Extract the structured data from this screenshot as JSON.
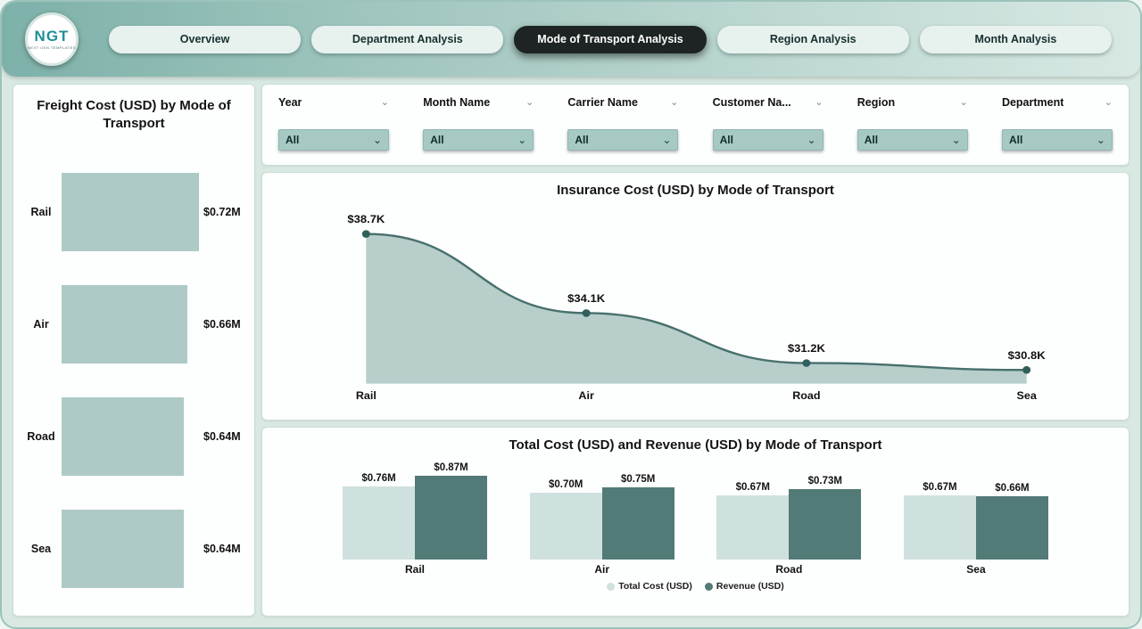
{
  "logo": {
    "text": "NGT",
    "subtext": "NEXT GEN TEMPLATES"
  },
  "nav": {
    "tabs": [
      {
        "label": "Overview",
        "active": false
      },
      {
        "label": "Department Analysis",
        "active": false
      },
      {
        "label": "Mode of Transport Analysis",
        "active": true
      },
      {
        "label": "Region Analysis",
        "active": false
      },
      {
        "label": "Month Analysis",
        "active": false
      }
    ]
  },
  "filters": {
    "items": [
      {
        "label": "Year",
        "value": "All"
      },
      {
        "label": "Month Name",
        "value": "All"
      },
      {
        "label": "Carrier Name",
        "value": "All"
      },
      {
        "label": "Customer Na...",
        "value": "All"
      },
      {
        "label": "Region",
        "value": "All"
      },
      {
        "label": "Department",
        "value": "All"
      }
    ]
  },
  "colors": {
    "accent_dark": "#527a76",
    "accent_light": "#cfe1de",
    "bar_sage": "#adcac7",
    "area_fill": "#b7cecb",
    "line": "#47706c",
    "point": "#305f5c",
    "active_tab_bg": "#1e2423",
    "tab_bg": "#e7f1ee"
  },
  "chart_data": [
    {
      "type": "bar",
      "orientation": "horizontal",
      "title": "Freight Cost (USD) by Mode of Transport",
      "categories": [
        "Rail",
        "Air",
        "Road",
        "Sea"
      ],
      "values": [
        0.72,
        0.66,
        0.64,
        0.64
      ],
      "value_labels": [
        "$0.72M",
        "$0.66M",
        "$0.64M",
        "$0.64M"
      ],
      "xlabel": "",
      "ylabel": "",
      "bar_color": "#adcac7"
    },
    {
      "type": "area",
      "title": "Insurance Cost (USD) by Mode of Transport",
      "categories": [
        "Rail",
        "Air",
        "Road",
        "Sea"
      ],
      "values": [
        38.7,
        34.1,
        31.2,
        30.8
      ],
      "value_labels": [
        "$38.7K",
        "$34.1K",
        "$31.2K",
        "$30.8K"
      ],
      "ylim": [
        30,
        40
      ],
      "area_fill": "#b7cecb",
      "line_color": "#47706c",
      "point_color": "#305f5c"
    },
    {
      "type": "bar",
      "title": "Total Cost (USD) and Revenue (USD) by Mode of Transport",
      "categories": [
        "Rail",
        "Air",
        "Road",
        "Sea"
      ],
      "series": [
        {
          "name": "Total Cost (USD)",
          "values": [
            0.76,
            0.7,
            0.67,
            0.67
          ],
          "value_labels": [
            "$0.76M",
            "$0.70M",
            "$0.67M",
            "$0.67M"
          ],
          "color": "#cfe1de"
        },
        {
          "name": "Revenue (USD)",
          "values": [
            0.87,
            0.75,
            0.73,
            0.66
          ],
          "value_labels": [
            "$0.87M",
            "$0.75M",
            "$0.73M",
            "$0.66M"
          ],
          "color": "#527a76"
        }
      ],
      "ylim": [
        0,
        0.9
      ],
      "legend_position": "bottom"
    }
  ]
}
